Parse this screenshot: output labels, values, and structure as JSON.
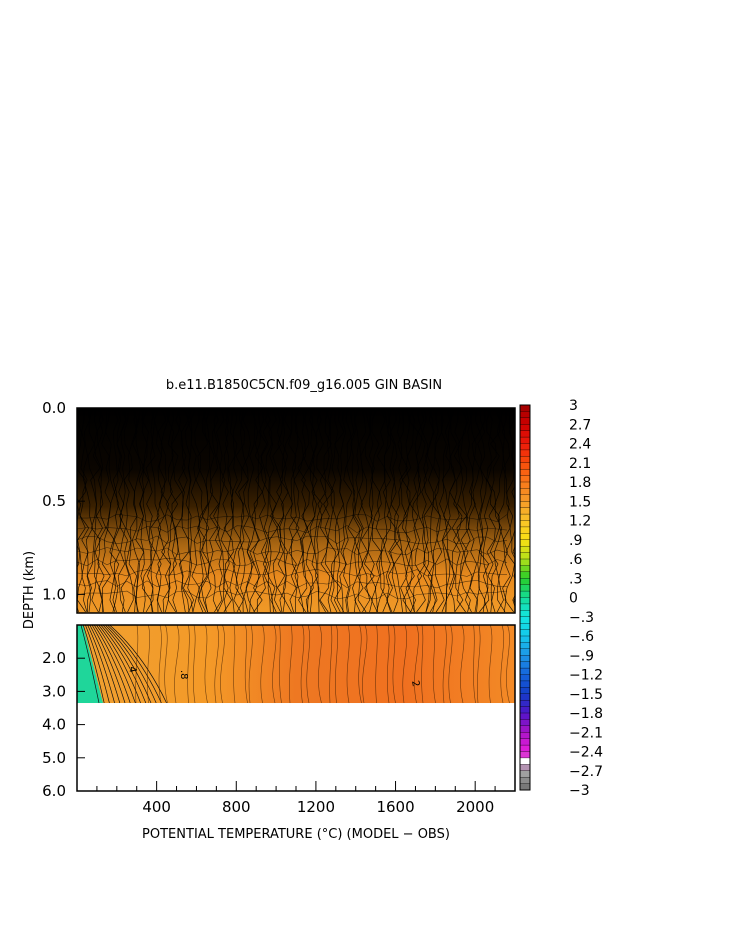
{
  "chart_data": {
    "type": "heatmap",
    "title": "b.e11.B1850C5CN.f09_g16.005 GIN BASIN",
    "xlabel": "POTENTIAL TEMPERATURE (°C) (MODEL − OBS)",
    "ylabel": "DEPTH (km)",
    "xlim": [
      0,
      2200
    ],
    "x_ticks": [
      400,
      800,
      1200,
      1600,
      2000
    ],
    "x_tick_labels": [
      "400",
      "800",
      "1200",
      "1600",
      "2000"
    ],
    "upper_panel": {
      "ylim": [
        0.0,
        1.1
      ],
      "y_ticks": [
        0.0,
        0.5,
        1.0
      ],
      "y_tick_labels": [
        "0.0",
        "0.5",
        "1.0"
      ]
    },
    "lower_panel": {
      "ylim": [
        1.0,
        6.0
      ],
      "y_ticks": [
        2.0,
        3.0,
        4.0,
        5.0,
        6.0
      ],
      "y_tick_labels": [
        "2.0",
        "3.0",
        "4.0",
        "5.0",
        "6.0"
      ],
      "data_bottom_depth": 3.35
    },
    "contour_labels": [
      ".8",
      "4",
      "2"
    ],
    "colorbar": {
      "min": -3,
      "max": 3,
      "step": 0.1,
      "tick_values": [
        3,
        2.7,
        2.4,
        2.1,
        1.8,
        1.5,
        1.2,
        0.9,
        0.6,
        0.3,
        0,
        -0.3,
        -0.6,
        -0.9,
        -1.2,
        -1.5,
        -1.8,
        -2.1,
        -2.4,
        -2.7,
        -3
      ],
      "tick_labels": [
        "3",
        "2.7",
        "2.4",
        "2.1",
        "1.8",
        "1.5",
        "1.2",
        ".9",
        ".6",
        ".3",
        "0",
        "−.3",
        "−.6",
        "−.9",
        "−1.2",
        "−1.5",
        "−1.8",
        "−2.1",
        "−2.4",
        "−2.7",
        "−3"
      ]
    }
  }
}
